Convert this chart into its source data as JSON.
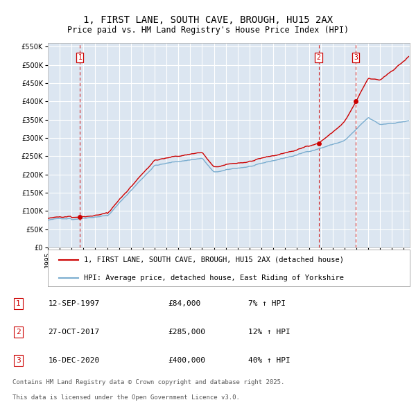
{
  "title": "1, FIRST LANE, SOUTH CAVE, BROUGH, HU15 2AX",
  "subtitle": "Price paid vs. HM Land Registry's House Price Index (HPI)",
  "sale_label": "1, FIRST LANE, SOUTH CAVE, BROUGH, HU15 2AX (detached house)",
  "hpi_label": "HPI: Average price, detached house, East Riding of Yorkshire",
  "sale_color": "#cc0000",
  "hpi_color": "#7aadcf",
  "plot_bg": "#dce6f1",
  "grid_color": "#ffffff",
  "annotation_box_color": "#cc0000",
  "vline_color": "#cc0000",
  "transactions": [
    {
      "num": 1,
      "date": "12-SEP-1997",
      "price": 84000,
      "hpi_pct": "7% ↑ HPI",
      "x_year": 1997.71
    },
    {
      "num": 2,
      "date": "27-OCT-2017",
      "price": 285000,
      "hpi_pct": "12% ↑ HPI",
      "x_year": 2017.82
    },
    {
      "num": 3,
      "date": "16-DEC-2020",
      "price": 400000,
      "hpi_pct": "40% ↑ HPI",
      "x_year": 2020.96
    }
  ],
  "ylim": [
    0,
    560000
  ],
  "ytick_step": 50000,
  "xmin": 1995.0,
  "xmax": 2025.5,
  "footnote1": "Contains HM Land Registry data © Crown copyright and database right 2025.",
  "footnote2": "This data is licensed under the Open Government Licence v3.0.",
  "title_fontsize": 10,
  "subtitle_fontsize": 8.5,
  "tick_fontsize": 7,
  "legend_fontsize": 7.5,
  "table_fontsize": 8,
  "footnote_fontsize": 6.5
}
